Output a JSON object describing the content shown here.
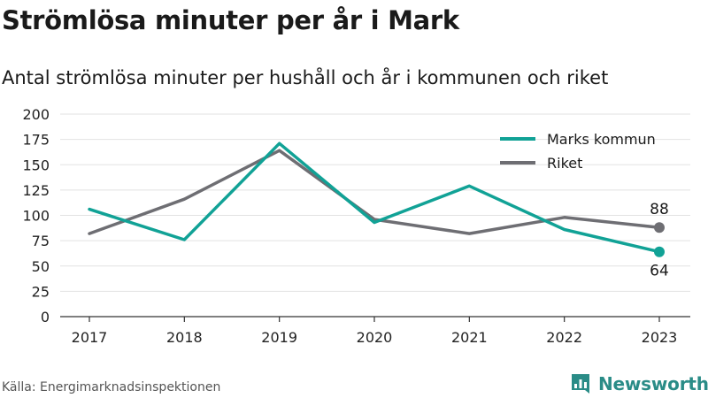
{
  "header": {
    "title": "Strömlösa minuter per år i Mark",
    "subtitle": "Antal strömlösa minuter per hushåll och år i kommunen och riket"
  },
  "footer": {
    "source": "Källa: Energimarknadsinspektionen",
    "brand": "Newsworthy"
  },
  "icons": {
    "brand_logo": "bar-chart-logo-icon"
  },
  "colors": {
    "marks": "#11a296",
    "riket": "#6e6e73",
    "grid": "#e2e2e2",
    "axis": "#333333",
    "brand": "#2a8c87"
  },
  "chart_data": {
    "type": "line",
    "x": [
      "2017",
      "2018",
      "2019",
      "2020",
      "2021",
      "2022",
      "2023"
    ],
    "ylim": [
      0,
      200
    ],
    "yticks": [
      0,
      25,
      50,
      75,
      100,
      125,
      150,
      175,
      200
    ],
    "grid": true,
    "legend": "top-right",
    "series": [
      {
        "name": "Marks kommun",
        "color": "#11a296",
        "values": [
          106,
          76,
          171,
          93,
          129,
          86,
          64
        ],
        "end_label": "64"
      },
      {
        "name": "Riket",
        "color": "#6e6e73",
        "values": [
          82,
          116,
          164,
          96,
          82,
          98,
          88
        ],
        "end_label": "88"
      }
    ]
  }
}
